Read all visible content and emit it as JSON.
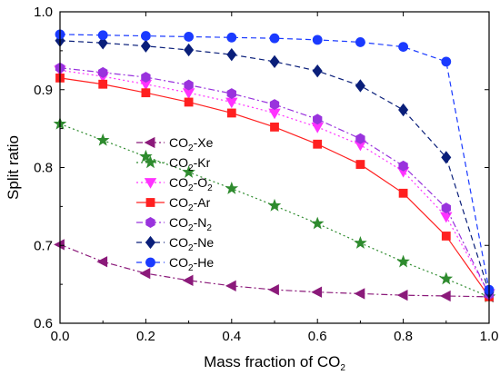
{
  "chart_data": {
    "type": "line",
    "xlabel": "Mass fraction of CO",
    "xlabel_sub": "2",
    "ylabel": "Split ratio",
    "xlim": [
      0.0,
      1.0
    ],
    "ylim": [
      0.6,
      1.0
    ],
    "x_ticks": [
      0.0,
      0.2,
      0.4,
      0.6,
      0.8,
      1.0
    ],
    "x_tick_labels": [
      "0.0",
      "0.2",
      "0.4",
      "0.6",
      "0.8",
      "1.0"
    ],
    "y_ticks": [
      0.6,
      0.7,
      0.8,
      0.9,
      1.0
    ],
    "y_tick_labels": [
      "0.6",
      "0.7",
      "0.8",
      "0.9",
      "1.0"
    ],
    "legend_placement": "center-left",
    "grid": false,
    "x": [
      0.0,
      0.1,
      0.2,
      0.3,
      0.4,
      0.5,
      0.6,
      0.7,
      0.8,
      0.9,
      1.0
    ],
    "series": [
      {
        "name": "CO2-Xe",
        "name_prefix": "CO",
        "name_sub": "2",
        "name_suffix": "-Xe",
        "color": "#8b1a7a",
        "marker": "triangle-left",
        "dash": "dashdot",
        "values": [
          0.701,
          0.679,
          0.664,
          0.655,
          0.648,
          0.643,
          0.64,
          0.638,
          0.636,
          0.635,
          0.634
        ]
      },
      {
        "name": "CO2-Kr",
        "name_prefix": "CO",
        "name_sub": "2",
        "name_suffix": "-Kr",
        "color": "#2e8b2e",
        "marker": "star",
        "dash": "dot",
        "values": [
          0.856,
          0.835,
          0.814,
          0.794,
          0.773,
          0.751,
          0.728,
          0.703,
          0.679,
          0.657,
          0.634
        ]
      },
      {
        "name": "CO2-O2",
        "name_prefix": "CO",
        "name_sub": "2",
        "name_suffix": "-O",
        "name_suffix_sub": "2",
        "color": "#ff33ff",
        "marker": "triangle-down",
        "dash": "dot",
        "values": [
          0.925,
          0.917,
          0.907,
          0.896,
          0.884,
          0.87,
          0.852,
          0.829,
          0.795,
          0.737,
          0.638
        ]
      },
      {
        "name": "CO2-Ar",
        "name_prefix": "CO",
        "name_sub": "2",
        "name_suffix": "-Ar",
        "color": "#ff2020",
        "marker": "square",
        "dash": "solid",
        "values": [
          0.915,
          0.907,
          0.896,
          0.884,
          0.87,
          0.852,
          0.83,
          0.804,
          0.767,
          0.712,
          0.634
        ]
      },
      {
        "name": "CO2-N2",
        "name_prefix": "CO",
        "name_sub": "2",
        "name_suffix": "-N",
        "name_suffix_sub": "2",
        "color": "#9933dd",
        "marker": "hexagon",
        "dash": "dashdot",
        "values": [
          0.928,
          0.922,
          0.916,
          0.906,
          0.895,
          0.881,
          0.862,
          0.837,
          0.802,
          0.748,
          0.637
        ]
      },
      {
        "name": "CO2-Ne",
        "name_prefix": "CO",
        "name_sub": "2",
        "name_suffix": "-Ne",
        "color": "#0a1f7a",
        "marker": "diamond",
        "dash": "dash",
        "values": [
          0.963,
          0.96,
          0.956,
          0.951,
          0.945,
          0.936,
          0.924,
          0.905,
          0.874,
          0.813,
          0.64
        ]
      },
      {
        "name": "CO2-He",
        "name_prefix": "CO",
        "name_sub": "2",
        "name_suffix": "-He",
        "color": "#1a3aff",
        "marker": "circle",
        "dash": "dash",
        "values": [
          0.971,
          0.97,
          0.969,
          0.968,
          0.967,
          0.966,
          0.964,
          0.961,
          0.955,
          0.936,
          0.643
        ]
      }
    ]
  }
}
